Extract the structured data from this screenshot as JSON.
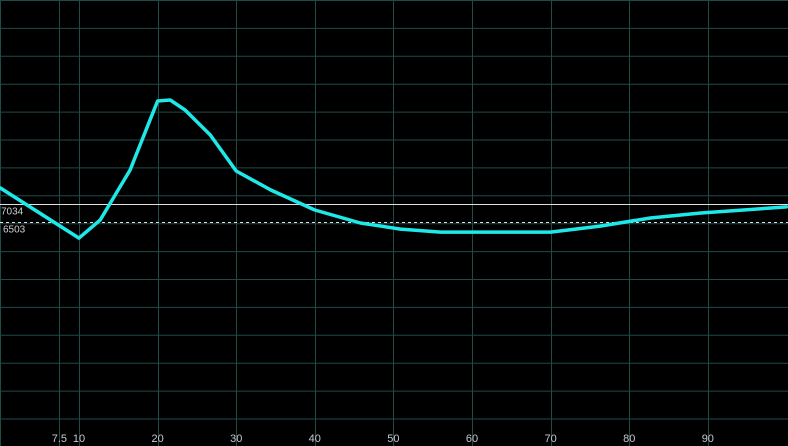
{
  "chart_data": {
    "type": "line",
    "title": "",
    "xlabel": "",
    "ylabel": "",
    "xlim": [
      0,
      100
    ],
    "ylim": [
      -100,
      13050
    ],
    "grid": true,
    "x_ticks": [
      7.5,
      10,
      20,
      30,
      40,
      50,
      60,
      70,
      80,
      90
    ],
    "x_tick_labels": [
      "7.5",
      "10",
      "20",
      "30",
      "40",
      "50",
      "60",
      "70",
      "80",
      "90"
    ],
    "series": [
      {
        "color": "#1ee8e8",
        "points": [
          [
            0,
            7506
          ],
          [
            10,
            6031
          ],
          [
            12.7,
            6562
          ],
          [
            16.5,
            8037
          ],
          [
            20,
            10073
          ],
          [
            21.6,
            10102
          ],
          [
            23.5,
            9807
          ],
          [
            26.7,
            9070
          ],
          [
            30,
            8008
          ],
          [
            34.4,
            7447
          ],
          [
            40,
            6857
          ],
          [
            45.8,
            6474
          ],
          [
            50.9,
            6296
          ],
          [
            56,
            6208
          ],
          [
            70,
            6208
          ],
          [
            76.3,
            6385
          ],
          [
            82.7,
            6621
          ],
          [
            89.1,
            6769
          ],
          [
            100,
            6950
          ]
        ]
      }
    ],
    "reference_lines": [
      {
        "value": 7034,
        "label": "7034",
        "style": "solid",
        "color": "#e0e0e0"
      },
      {
        "value": 6503,
        "label": "6503",
        "style": "dashed",
        "color": "#e0e0e0"
      }
    ],
    "colors": {
      "background": "#000000",
      "grid": "#1f4a4a"
    }
  }
}
